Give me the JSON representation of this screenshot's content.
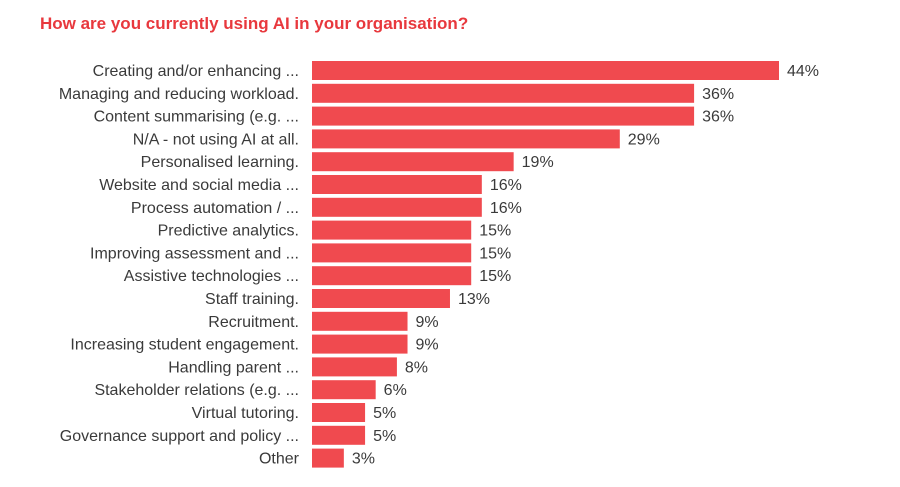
{
  "chart_data": {
    "type": "bar",
    "orientation": "horizontal",
    "title": "How are you currently using AI in your organisation?",
    "categories": [
      "Creating and/or enhancing ...",
      "Managing and reducing workload.",
      "Content summarising (e.g. ...",
      "N/A - not using AI at all.",
      "Personalised learning.",
      "Website and social media ...",
      "Process automation / ...",
      "Predictive analytics.",
      "Improving assessment and ...",
      "Assistive technologies ...",
      "Staff training.",
      "Recruitment.",
      "Increasing student engagement.",
      "Handling parent ...",
      "Stakeholder relations (e.g. ...",
      "Virtual tutoring.",
      "Governance support and policy ...",
      "Other"
    ],
    "values": [
      44,
      36,
      36,
      29,
      19,
      16,
      16,
      15,
      15,
      15,
      13,
      9,
      9,
      8,
      6,
      5,
      5,
      3
    ],
    "value_labels": [
      "44%",
      "36%",
      "36%",
      "29%",
      "19%",
      "16%",
      "16%",
      "15%",
      "15%",
      "15%",
      "13%",
      "9%",
      "9%",
      "8%",
      "6%",
      "5%",
      "5%",
      "3%"
    ],
    "xlim": [
      0,
      44
    ],
    "grid": false,
    "legend": "none",
    "bar_color": "#f04a4f",
    "title_color": "#e8383d",
    "text_color": "#3a3a3a"
  }
}
